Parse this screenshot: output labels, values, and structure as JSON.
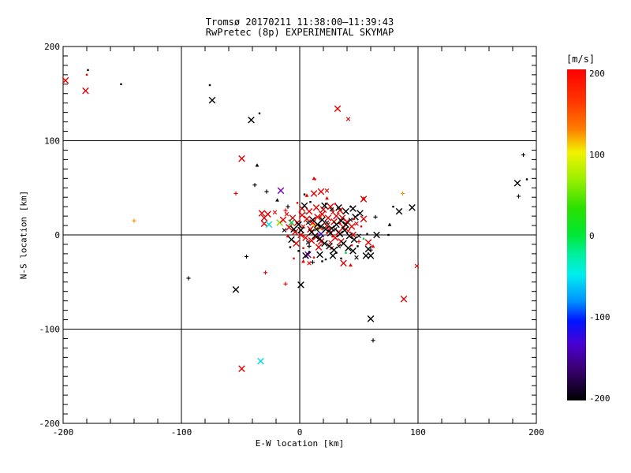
{
  "title": {
    "line1": "Tromsø 20170211 11:38:00–11:39:43",
    "line2": "RwPretec (8p) EXPERIMENTAL SKYMAP"
  },
  "chart_data": {
    "type": "scatter",
    "title": "Tromsø 20170211 11:38:00–11:39:43",
    "subtitle": "RwPretec (8p) EXPERIMENTAL SKYMAP",
    "xlabel": "E-W location [km]",
    "ylabel": "N-S location [km]",
    "xlim": [
      -200,
      200
    ],
    "ylim": [
      -200,
      200
    ],
    "xticks_major": [
      -200,
      -100,
      0,
      100,
      200
    ],
    "yticks_major": [
      -200,
      -100,
      0,
      100,
      200
    ],
    "x_minor_step": 20,
    "y_minor_step": 10,
    "grid_values": [
      -100,
      0,
      100
    ],
    "grid": "on",
    "colorbar": {
      "title": "[m/s]",
      "ticks": [
        200,
        100,
        0,
        -100,
        -200
      ],
      "range": [
        -200,
        200
      ],
      "stops": [
        [
          0.0,
          "#ff0000"
        ],
        [
          0.1,
          "#ff3800"
        ],
        [
          0.18,
          "#ff7d00"
        ],
        [
          0.25,
          "#f2f200"
        ],
        [
          0.33,
          "#9cf000"
        ],
        [
          0.42,
          "#2ae000"
        ],
        [
          0.5,
          "#00e836"
        ],
        [
          0.56,
          "#00f0a0"
        ],
        [
          0.62,
          "#00eeee"
        ],
        [
          0.7,
          "#0092ff"
        ],
        [
          0.76,
          "#0014ff"
        ],
        [
          0.83,
          "#4b00d2"
        ],
        [
          0.9,
          "#3c0078"
        ],
        [
          1.0,
          "#000000"
        ]
      ]
    },
    "color_map": {
      "r": "#e60000",
      "k": "#000000",
      "cy": "#00dcdc",
      "gn": "#00c844",
      "yg": "#8cd600",
      "ye": "#f0f000",
      "gd": "#ffc800",
      "or": "#ff9100",
      "pu": "#7a00b4",
      "nv": "#2800c8"
    },
    "marker_map": {
      "x": "cross-large",
      "xs": "cross-small",
      "d": "dot",
      "p": "plus",
      "t": "triangle"
    },
    "points": [
      [
        -198,
        164,
        "r",
        "x"
      ],
      [
        -179,
        175,
        "k",
        "d"
      ],
      [
        -180,
        170,
        "r",
        "d"
      ],
      [
        -181,
        153,
        "r",
        "x"
      ],
      [
        -151,
        160,
        "k",
        "d"
      ],
      [
        -76,
        159,
        "k",
        "d"
      ],
      [
        -74,
        143,
        "k",
        "x"
      ],
      [
        -41,
        122,
        "k",
        "x"
      ],
      [
        -34,
        129,
        "k",
        "d"
      ],
      [
        -49,
        81,
        "r",
        "x"
      ],
      [
        -36,
        74,
        "k",
        "t"
      ],
      [
        32,
        134,
        "r",
        "x"
      ],
      [
        41,
        123,
        "r",
        "xs"
      ],
      [
        189,
        85,
        "k",
        "p"
      ],
      [
        184,
        55,
        "k",
        "x"
      ],
      [
        192,
        59,
        "k",
        "d"
      ],
      [
        185,
        41,
        "k",
        "p"
      ],
      [
        -140,
        15,
        "or",
        "p"
      ],
      [
        -54,
        44,
        "r",
        "p"
      ],
      [
        -38,
        53,
        "k",
        "p"
      ],
      [
        -94,
        -46,
        "k",
        "p"
      ],
      [
        -45,
        -23,
        "k",
        "p"
      ],
      [
        -29,
        -40,
        "r",
        "p"
      ],
      [
        -54,
        -58,
        "k",
        "x"
      ],
      [
        -12,
        -52,
        "r",
        "p"
      ],
      [
        1,
        -53,
        "k",
        "x"
      ],
      [
        88,
        -68,
        "r",
        "x"
      ],
      [
        60,
        -89,
        "k",
        "x"
      ],
      [
        62,
        -112,
        "k",
        "p"
      ],
      [
        -33,
        -134,
        "cy",
        "x"
      ],
      [
        -49,
        -142,
        "r",
        "x"
      ],
      [
        99,
        -33,
        "r",
        "xs"
      ],
      [
        87,
        44,
        "or",
        "p"
      ],
      [
        84,
        25,
        "k",
        "x"
      ],
      [
        95,
        29,
        "k",
        "x"
      ],
      [
        79,
        30,
        "k",
        "d"
      ],
      [
        64,
        19,
        "k",
        "p"
      ],
      [
        54,
        38,
        "r",
        "x"
      ],
      [
        54,
        17,
        "r",
        "x"
      ],
      [
        76,
        11,
        "k",
        "t"
      ],
      [
        65,
        0,
        "k",
        "x"
      ],
      [
        57,
        1,
        "k",
        "d"
      ],
      [
        75,
        0,
        "k",
        "d"
      ],
      [
        58,
        -8,
        "r",
        "x"
      ],
      [
        62,
        -12,
        "r",
        "t"
      ],
      [
        58,
        -15,
        "k",
        "x"
      ],
      [
        60,
        -16,
        "k",
        "p"
      ],
      [
        56,
        -22,
        "k",
        "x"
      ],
      [
        60,
        -22,
        "k",
        "x"
      ],
      [
        12,
        60,
        "r",
        "t"
      ],
      [
        -16,
        47,
        "pu",
        "x"
      ],
      [
        -28,
        46,
        "k",
        "p"
      ],
      [
        -19,
        37,
        "k",
        "t"
      ],
      [
        12,
        44,
        "r",
        "x"
      ],
      [
        6,
        42,
        "r",
        "t"
      ],
      [
        18,
        46,
        "r",
        "x"
      ],
      [
        4,
        43,
        "k",
        "d"
      ],
      [
        23,
        39,
        "r",
        "t"
      ],
      [
        54,
        39,
        "r",
        "t"
      ],
      [
        13,
        59,
        "r",
        "d"
      ],
      [
        23,
        47,
        "r",
        "xs"
      ],
      [
        -32,
        23,
        "r",
        "x"
      ],
      [
        -27,
        22,
        "r",
        "x"
      ],
      [
        -30,
        18,
        "r",
        "x"
      ],
      [
        -30,
        12,
        "r",
        "x"
      ],
      [
        -26,
        11,
        "cy",
        "x"
      ],
      [
        -17,
        13,
        "yg",
        "x"
      ],
      [
        -7,
        13,
        "gn",
        "x"
      ],
      [
        39,
        -19,
        "gn",
        "d"
      ],
      [
        54,
        -4,
        "gn",
        "d"
      ],
      [
        12,
        10,
        "gd",
        "x"
      ],
      [
        16,
        6,
        "ye",
        "xs"
      ],
      [
        18,
        1,
        "nv",
        "x"
      ],
      [
        7,
        -21,
        "pu",
        "x"
      ],
      [
        18,
        19,
        "or",
        "d"
      ],
      [
        5,
        23,
        "cy",
        "d"
      ],
      [
        18,
        15,
        "cy",
        "d"
      ],
      [
        3,
        -28,
        "r",
        "t"
      ],
      [
        8,
        -30,
        "r",
        "xs"
      ],
      [
        37,
        -30,
        "r",
        "x"
      ],
      [
        43,
        -32,
        "r",
        "t"
      ],
      [
        12,
        -24,
        "r",
        "d"
      ],
      [
        -5,
        -25,
        "r",
        "d"
      ],
      [
        -10,
        -1,
        "r",
        "t"
      ],
      [
        14,
        29,
        "r",
        "x"
      ],
      [
        20,
        27,
        "r",
        "x"
      ],
      [
        26,
        30,
        "r",
        "x"
      ],
      [
        8,
        25,
        "r",
        "x"
      ],
      [
        2,
        21,
        "r",
        "x"
      ],
      [
        6,
        17,
        "r",
        "x"
      ],
      [
        11,
        13,
        "r",
        "x"
      ],
      [
        15,
        19,
        "r",
        "x"
      ],
      [
        19,
        22,
        "r",
        "x"
      ],
      [
        24,
        18,
        "r",
        "x"
      ],
      [
        28,
        24,
        "r",
        "xs"
      ],
      [
        31,
        20,
        "r",
        "x"
      ],
      [
        34,
        26,
        "r",
        "x"
      ],
      [
        29,
        14,
        "r",
        "x"
      ],
      [
        23,
        10,
        "r",
        "x"
      ],
      [
        17,
        8,
        "r",
        "x"
      ],
      [
        9,
        6,
        "r",
        "x"
      ],
      [
        3,
        9,
        "r",
        "xs"
      ],
      [
        -2,
        13,
        "r",
        "x"
      ],
      [
        -6,
        18,
        "r",
        "x"
      ],
      [
        -11,
        22,
        "r",
        "xs"
      ],
      [
        -14,
        16,
        "r",
        "x"
      ],
      [
        -9,
        8,
        "r",
        "x"
      ],
      [
        -4,
        3,
        "r",
        "x"
      ],
      [
        1,
        0,
        "r",
        "x"
      ],
      [
        5,
        -3,
        "r",
        "x"
      ],
      [
        10,
        -6,
        "r",
        "x"
      ],
      [
        14,
        -2,
        "r",
        "x"
      ],
      [
        18,
        -7,
        "r",
        "x"
      ],
      [
        26,
        -8,
        "r",
        "xs"
      ],
      [
        30,
        -3,
        "r",
        "x"
      ],
      [
        35,
        -7,
        "r",
        "x"
      ],
      [
        33,
        3,
        "r",
        "x"
      ],
      [
        37,
        8,
        "r",
        "x"
      ],
      [
        41,
        4,
        "r",
        "xs"
      ],
      [
        44,
        9,
        "r",
        "x"
      ],
      [
        40,
        14,
        "r",
        "x"
      ],
      [
        45,
        0,
        "r",
        "x"
      ],
      [
        36,
        18,
        "r",
        "x"
      ],
      [
        48,
        12,
        "r",
        "xs"
      ],
      [
        -3,
        -9,
        "r",
        "x"
      ],
      [
        16,
        -13,
        "r",
        "x"
      ],
      [
        27,
        -14,
        "r",
        "xs"
      ],
      [
        2,
        28,
        "r",
        "x"
      ],
      [
        -21,
        24,
        "r",
        "xs"
      ],
      [
        25,
        5,
        "r",
        "x"
      ],
      [
        4,
        31,
        "k",
        "x"
      ],
      [
        21,
        31,
        "k",
        "x"
      ],
      [
        27,
        27,
        "k",
        "xs"
      ],
      [
        33,
        29,
        "k",
        "x"
      ],
      [
        39,
        25,
        "k",
        "x"
      ],
      [
        45,
        28,
        "k",
        "x"
      ],
      [
        51,
        23,
        "k",
        "x"
      ],
      [
        47,
        19,
        "k",
        "x"
      ],
      [
        43,
        16,
        "k",
        "xs"
      ],
      [
        39,
        11,
        "k",
        "x"
      ],
      [
        35,
        15,
        "k",
        "x"
      ],
      [
        31,
        11,
        "k",
        "x"
      ],
      [
        27,
        7,
        "k",
        "x"
      ],
      [
        23,
        13,
        "k",
        "xs"
      ],
      [
        19,
        16,
        "k",
        "x"
      ],
      [
        15,
        11,
        "k",
        "x"
      ],
      [
        11,
        16,
        "k",
        "x"
      ],
      [
        7,
        13,
        "k",
        "xs"
      ],
      [
        -1,
        11,
        "k",
        "x"
      ],
      [
        -5,
        6,
        "k",
        "x"
      ],
      [
        -13,
        5,
        "k",
        "xs"
      ],
      [
        1,
        5,
        "k",
        "x"
      ],
      [
        10,
        3,
        "k",
        "x"
      ],
      [
        14,
        6,
        "k",
        "xs"
      ],
      [
        18,
        9,
        "k",
        "x"
      ],
      [
        22,
        6,
        "k",
        "x"
      ],
      [
        26,
        2,
        "k",
        "x"
      ],
      [
        30,
        6,
        "k",
        "xs"
      ],
      [
        34,
        1,
        "k",
        "x"
      ],
      [
        38,
        5,
        "k",
        "x"
      ],
      [
        42,
        -1,
        "k",
        "x"
      ],
      [
        46,
        -5,
        "k",
        "x"
      ],
      [
        50,
        -1,
        "k",
        "xs"
      ],
      [
        13,
        -1,
        "k",
        "x"
      ],
      [
        17,
        -4,
        "k",
        "x"
      ],
      [
        21,
        -9,
        "k",
        "x"
      ],
      [
        25,
        -12,
        "k",
        "x"
      ],
      [
        29,
        -16,
        "k",
        "x"
      ],
      [
        33,
        -12,
        "k",
        "xs"
      ],
      [
        37,
        -9,
        "k",
        "x"
      ],
      [
        41,
        -14,
        "k",
        "x"
      ],
      [
        45,
        -17,
        "k",
        "x"
      ],
      [
        7,
        -8,
        "k",
        "xs"
      ],
      [
        -7,
        -5,
        "k",
        "x"
      ],
      [
        28,
        -22,
        "k",
        "x"
      ],
      [
        17,
        -21,
        "k",
        "x"
      ],
      [
        5,
        -22,
        "k",
        "x"
      ],
      [
        48,
        -24,
        "k",
        "xs"
      ],
      [
        0,
        24,
        "r",
        "d"
      ],
      [
        -12,
        26,
        "r",
        "p"
      ],
      [
        34,
        12,
        "r",
        "d"
      ],
      [
        46,
        17,
        "r",
        "d"
      ],
      [
        52,
        9,
        "r",
        "d"
      ],
      [
        19,
        -28,
        "k",
        "d"
      ],
      [
        23,
        2,
        "r",
        "d"
      ],
      [
        28,
        -1,
        "r",
        "t"
      ],
      [
        -8,
        -13,
        "k",
        "d"
      ],
      [
        8,
        -18,
        "k",
        "d"
      ],
      [
        44,
        -11,
        "r",
        "d"
      ],
      [
        50,
        -7,
        "r",
        "p"
      ],
      [
        31,
        -19,
        "k",
        "d"
      ],
      [
        9,
        35,
        "k",
        "d"
      ],
      [
        -2,
        34,
        "r",
        "d"
      ],
      [
        22,
        33,
        "k",
        "d"
      ],
      [
        30,
        33,
        "r",
        "d"
      ],
      [
        43,
        30,
        "k",
        "d"
      ],
      [
        -10,
        30,
        "k",
        "p"
      ],
      [
        49,
        -12,
        "k",
        "d"
      ],
      [
        11,
        -29,
        "k",
        "p"
      ],
      [
        22,
        -26,
        "k",
        "d"
      ],
      [
        35,
        -25,
        "k",
        "d"
      ],
      [
        3,
        -14,
        "r",
        "d"
      ],
      [
        -1,
        -17,
        "k",
        "d"
      ],
      [
        8,
        -12,
        "k",
        "p"
      ]
    ]
  }
}
